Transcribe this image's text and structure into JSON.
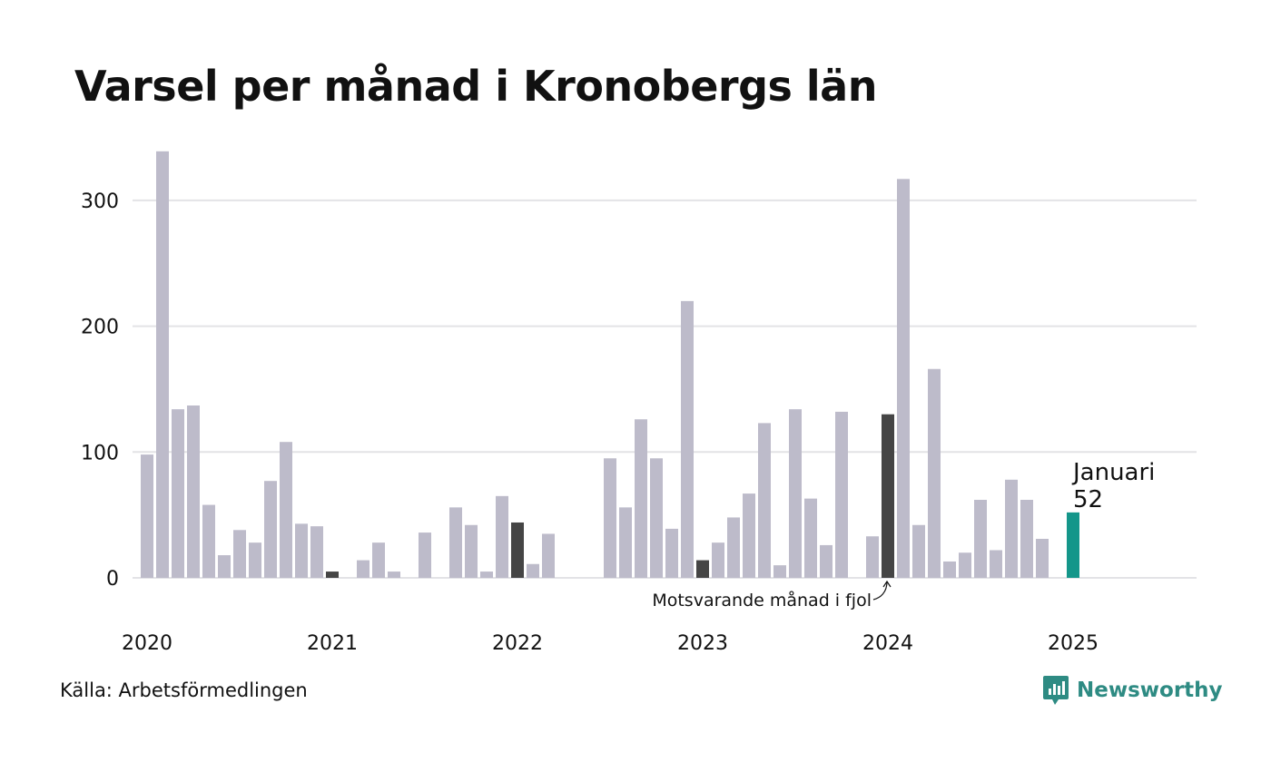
{
  "title": "Varsel per månad i Kronobergs län",
  "source": "Källa: Arbetsförmedlingen",
  "brand": {
    "name": "Newsworthy",
    "icon": "newsworthy-logo-icon",
    "color": "#2e8b83"
  },
  "colors": {
    "bar_default": "#bdbbca",
    "bar_same_month": "#454545",
    "bar_current": "#14968a",
    "grid": "#e3e3e6",
    "text": "#111111"
  },
  "chart_data": {
    "type": "bar",
    "title": "Varsel per månad i Kronobergs län",
    "xlabel": "",
    "ylabel": "",
    "ylim": [
      0,
      340
    ],
    "y_ticks": [
      0,
      100,
      200,
      300
    ],
    "x_tick_labels": [
      "2020",
      "2021",
      "2022",
      "2023",
      "2024",
      "2025"
    ],
    "x_range": [
      "2020-01",
      "2025-12"
    ],
    "grid": true,
    "months": [
      "2020-01",
      "2020-02",
      "2020-03",
      "2020-04",
      "2020-05",
      "2020-06",
      "2020-07",
      "2020-08",
      "2020-09",
      "2020-10",
      "2020-11",
      "2020-12",
      "2021-01",
      "2021-02",
      "2021-03",
      "2021-04",
      "2021-05",
      "2021-06",
      "2021-07",
      "2021-08",
      "2021-09",
      "2021-10",
      "2021-11",
      "2021-12",
      "2022-01",
      "2022-02",
      "2022-03",
      "2022-04",
      "2022-05",
      "2022-06",
      "2022-07",
      "2022-08",
      "2022-09",
      "2022-10",
      "2022-11",
      "2022-12",
      "2023-01",
      "2023-02",
      "2023-03",
      "2023-04",
      "2023-05",
      "2023-06",
      "2023-07",
      "2023-08",
      "2023-09",
      "2023-10",
      "2023-11",
      "2023-12",
      "2024-01",
      "2024-02",
      "2024-03",
      "2024-04",
      "2024-05",
      "2024-06",
      "2024-07",
      "2024-08",
      "2024-09",
      "2024-10",
      "2024-11",
      "2024-12",
      "2025-01"
    ],
    "values": [
      98,
      339,
      134,
      137,
      58,
      18,
      38,
      28,
      77,
      108,
      43,
      41,
      5,
      0,
      14,
      28,
      5,
      0,
      36,
      0,
      56,
      42,
      5,
      65,
      44,
      11,
      35,
      0,
      0,
      0,
      95,
      56,
      126,
      95,
      39,
      220,
      14,
      28,
      48,
      67,
      123,
      10,
      134,
      63,
      26,
      132,
      0,
      33,
      130,
      317,
      42,
      166,
      13,
      20,
      62,
      22,
      78,
      62,
      31,
      0,
      52
    ],
    "highlight_same_month": [
      "2021-01",
      "2022-01",
      "2023-01",
      "2024-01"
    ],
    "highlight_current": "2025-01",
    "annotation_current": {
      "label": "Januari",
      "value": "52"
    },
    "annotation_same_month": "Motsvarande månad i fjol"
  }
}
